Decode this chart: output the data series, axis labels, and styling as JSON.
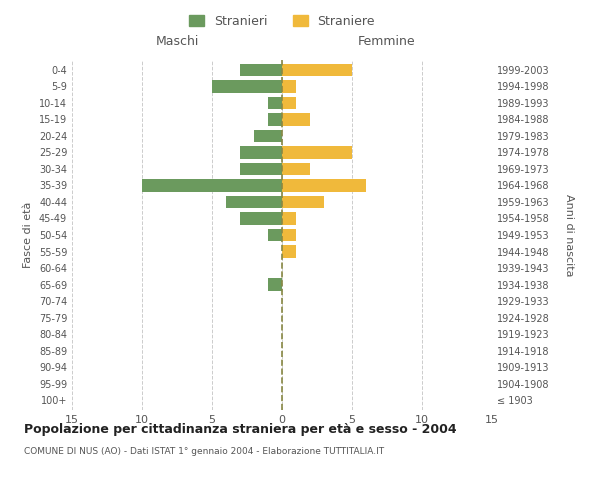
{
  "age_groups": [
    "100+",
    "95-99",
    "90-94",
    "85-89",
    "80-84",
    "75-79",
    "70-74",
    "65-69",
    "60-64",
    "55-59",
    "50-54",
    "45-49",
    "40-44",
    "35-39",
    "30-34",
    "25-29",
    "20-24",
    "15-19",
    "10-14",
    "5-9",
    "0-4"
  ],
  "birth_years": [
    "≤ 1903",
    "1904-1908",
    "1909-1913",
    "1914-1918",
    "1919-1923",
    "1924-1928",
    "1929-1933",
    "1934-1938",
    "1939-1943",
    "1944-1948",
    "1949-1953",
    "1954-1958",
    "1959-1963",
    "1964-1968",
    "1969-1973",
    "1974-1978",
    "1979-1983",
    "1984-1988",
    "1989-1993",
    "1994-1998",
    "1999-2003"
  ],
  "males": [
    0,
    0,
    0,
    0,
    0,
    0,
    0,
    1,
    0,
    0,
    1,
    3,
    4,
    10,
    3,
    3,
    2,
    1,
    1,
    5,
    3
  ],
  "females": [
    0,
    0,
    0,
    0,
    0,
    0,
    0,
    0,
    0,
    1,
    1,
    1,
    3,
    6,
    2,
    5,
    0,
    2,
    1,
    1,
    5
  ],
  "male_color": "#6b9a5e",
  "female_color": "#f0b93b",
  "legend_male_label": "Stranieri",
  "legend_female_label": "Straniere",
  "title_maschi": "Maschi",
  "title_femmine": "Femmine",
  "ylabel_left": "Fasce di età",
  "ylabel_right": "Anni di nascita",
  "xlim": 15,
  "main_title": "Popolazione per cittadinanza straniera per età e sesso - 2004",
  "subtitle": "COMUNE DI NUS (AO) - Dati ISTAT 1° gennaio 2004 - Elaborazione TUTTITALIA.IT",
  "bg_color": "#ffffff",
  "grid_color": "#cccccc",
  "text_color": "#555555",
  "dashed_line_color": "#888844"
}
